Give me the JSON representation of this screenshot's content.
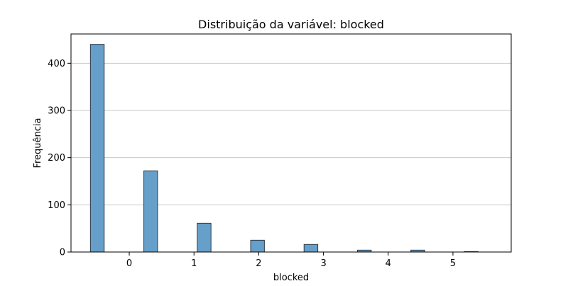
{
  "chart_data": {
    "type": "bar",
    "title": "Distribuição da variável: blocked",
    "xlabel": "blocked",
    "ylabel": "Frequência",
    "xlim": [
      -0.9,
      5.9
    ],
    "ylim": [
      0,
      462
    ],
    "xticks": [
      0,
      1,
      2,
      3,
      4,
      5
    ],
    "yticks": [
      0,
      100,
      200,
      300,
      400
    ],
    "bin_width": 0.2125,
    "bars": [
      {
        "x0": -0.6,
        "value": 440
      },
      {
        "x0": 0.225,
        "value": 172
      },
      {
        "x0": 1.05,
        "value": 61
      },
      {
        "x0": 1.875,
        "value": 25
      },
      {
        "x0": 2.7,
        "value": 16
      },
      {
        "x0": 3.525,
        "value": 4
      },
      {
        "x0": 4.35,
        "value": 4
      },
      {
        "x0": 5.175,
        "value": 1
      }
    ],
    "grid": {
      "y": true,
      "x": false
    },
    "colors": {
      "bar_fill": "#669fca",
      "bar_edge": "#2b3a45",
      "grid": "#c8c8c8",
      "axis": "#000000"
    }
  }
}
